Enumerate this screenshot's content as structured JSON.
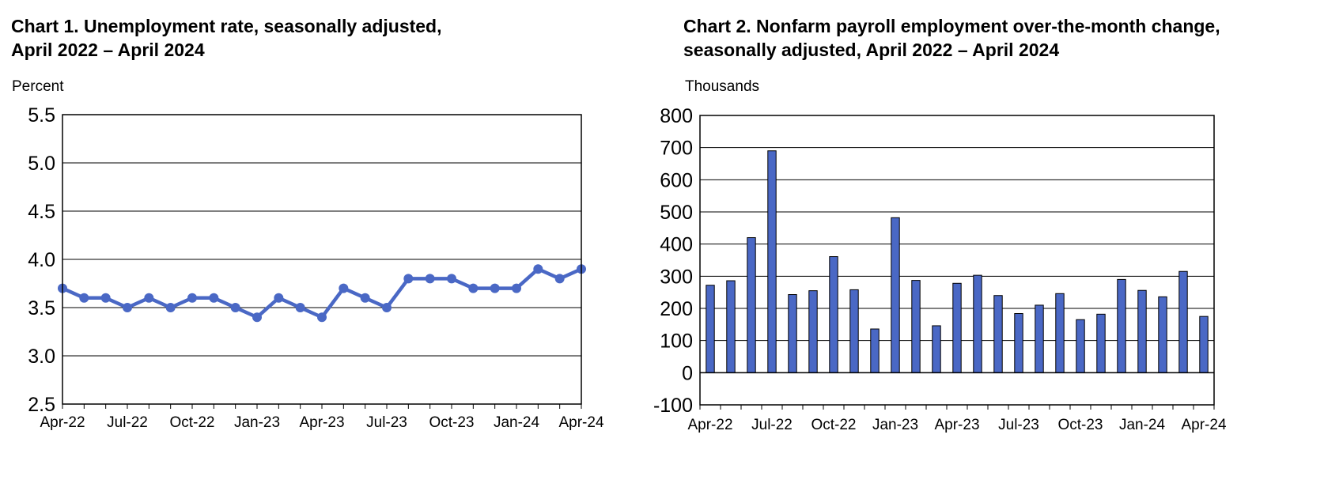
{
  "colors": {
    "series": "#4a68c5",
    "bar_stroke": "#000000",
    "grid": "#000000"
  },
  "chart_data": [
    {
      "type": "line",
      "title_lines": [
        "Chart 1. Unemployment rate, seasonally adjusted,",
        "April 2022 – April 2024"
      ],
      "ylabel": "Percent",
      "ylim": [
        2.5,
        5.5
      ],
      "yticks": [
        "2.5",
        "3.0",
        "3.5",
        "4.0",
        "4.5",
        "5.0",
        "5.5"
      ],
      "ytick_values": [
        2.5,
        3.0,
        3.5,
        4.0,
        4.5,
        5.0,
        5.5
      ],
      "x_labels": [
        "Apr-22",
        "Jul-22",
        "Oct-22",
        "Jan-23",
        "Apr-23",
        "Jul-23",
        "Oct-23",
        "Jan-24",
        "Apr-24"
      ],
      "x_label_every": 3,
      "grid": true,
      "values": [
        3.7,
        3.6,
        3.6,
        3.5,
        3.6,
        3.5,
        3.6,
        3.6,
        3.5,
        3.4,
        3.6,
        3.5,
        3.4,
        3.7,
        3.6,
        3.5,
        3.8,
        3.8,
        3.8,
        3.7,
        3.7,
        3.7,
        3.9,
        3.8,
        3.9
      ]
    },
    {
      "type": "bar",
      "title_lines": [
        "Chart 2. Nonfarm payroll employment over-the-month change,",
        "seasonally adjusted, April 2022 – April 2024"
      ],
      "ylabel": "Thousands",
      "ylim": [
        -100,
        800
      ],
      "yticks": [
        "-100",
        "0",
        "100",
        "200",
        "300",
        "400",
        "500",
        "600",
        "700",
        "800"
      ],
      "ytick_values": [
        -100,
        0,
        100,
        200,
        300,
        400,
        500,
        600,
        700,
        800
      ],
      "x_labels": [
        "Apr-22",
        "Jul-22",
        "Oct-22",
        "Jan-23",
        "Apr-23",
        "Jul-23",
        "Oct-23",
        "Jan-24",
        "Apr-24"
      ],
      "x_label_every": 3,
      "grid": true,
      "values": [
        272,
        286,
        420,
        690,
        243,
        255,
        361,
        258,
        136,
        482,
        287,
        146,
        278,
        303,
        240,
        184,
        210,
        246,
        165,
        182,
        290,
        256,
        236,
        315,
        175
      ]
    }
  ]
}
